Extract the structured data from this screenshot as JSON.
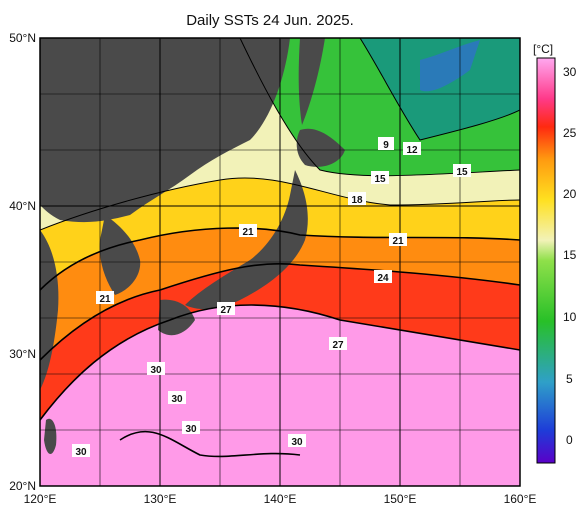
{
  "title": "Daily SSTs 24 Jun. 2025.",
  "unit": "[°C]",
  "lat_labels": [
    "50°N",
    "40°N",
    "30°N",
    "20°N"
  ],
  "lon_labels": [
    "120°E",
    "130°E",
    "140°E",
    "150°E",
    "160°E"
  ],
  "colorbar_ticks": [
    "30",
    "25",
    "20",
    "15",
    "10",
    "5",
    "0"
  ],
  "contour_labels": [
    "9",
    "12",
    "15",
    "15",
    "18",
    "21",
    "21",
    "21",
    "24",
    "27",
    "27",
    "30",
    "30",
    "30",
    "30",
    "30"
  ],
  "colors": {
    "land": "#4a4a4a",
    "grid": "#000000",
    "sst_30": "#ff9ae8",
    "sst_27": "#ff3a1a",
    "sst_24": "#ff8c10",
    "sst_21": "#ffd21a",
    "sst_18": "#f2f2b8",
    "sst_15": "#36c23a",
    "sst_9": "#1a9a7a"
  }
}
